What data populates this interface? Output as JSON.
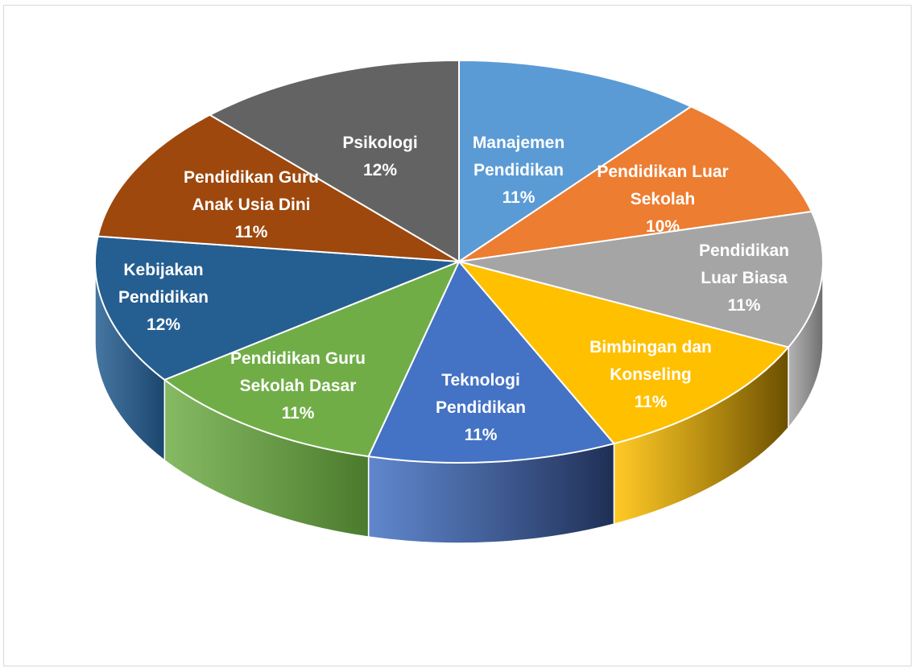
{
  "chart_data": {
    "type": "pie",
    "title": "",
    "style": "3d",
    "categories": [
      "Manajemen Pendidikan",
      "Pendidikan Luar Sekolah",
      "Pendidikan Luar Biasa",
      "Bimbingan dan Konseling",
      "Teknologi Pendidikan",
      "Pendidikan Guru Sekolah Dasar",
      "Kebijakan Pendidikan",
      "Pendidikan Guru Anak Usia Dini",
      "Psikologi"
    ],
    "values": [
      11,
      10,
      11,
      11,
      11,
      11,
      12,
      11,
      12
    ],
    "unit": "%",
    "colors": [
      "#5B9BD5",
      "#ED7D31",
      "#A5A5A5",
      "#FFC000",
      "#4472C4",
      "#70AD47",
      "#255E91",
      "#9E480E",
      "#636363"
    ],
    "side_colors": [
      "#3E6F9E",
      "#A85A22",
      "#6E6E6E",
      "#6B4F00",
      "#1F2F55",
      "#4A7A2C",
      "#1B466E",
      "#6B300A",
      "#444444"
    ]
  },
  "labels": [
    {
      "lines": [
        "Manajemen",
        "Pendidikan",
        "11%"
      ]
    },
    {
      "lines": [
        "Pendidikan Luar",
        "Sekolah",
        "10%"
      ]
    },
    {
      "lines": [
        "Pendidikan",
        "Luar Biasa",
        "11%"
      ]
    },
    {
      "lines": [
        "Bimbingan dan",
        "Konseling",
        "11%"
      ]
    },
    {
      "lines": [
        "Teknologi",
        "Pendidikan",
        "11%"
      ]
    },
    {
      "lines": [
        "Pendidikan Guru",
        "Sekolah Dasar",
        "11%"
      ]
    },
    {
      "lines": [
        "Kebijakan",
        "Pendidikan",
        "12%"
      ]
    },
    {
      "lines": [
        "Pendidikan Guru",
        "Anak Usia Dini",
        "11%"
      ]
    },
    {
      "lines": [
        "Psikologi",
        "12%"
      ]
    }
  ]
}
